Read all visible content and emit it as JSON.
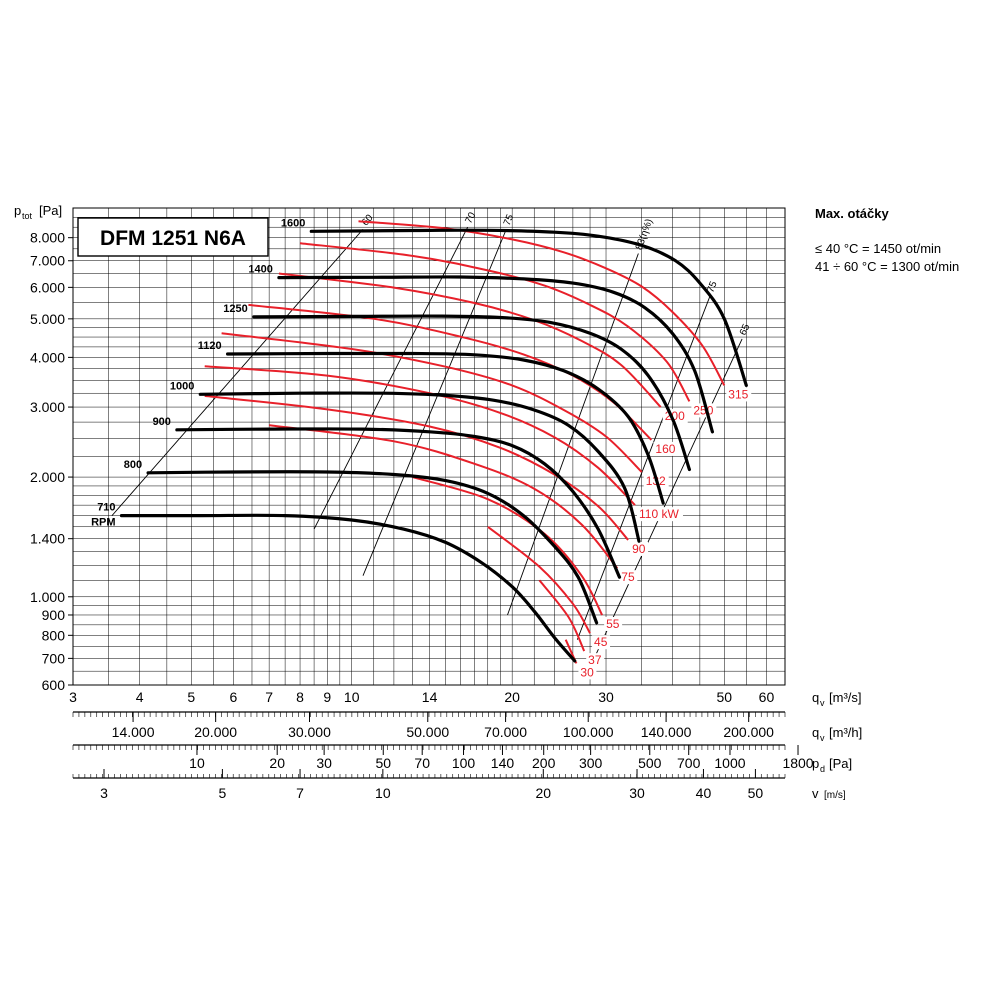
{
  "chart_data": {
    "type": "line",
    "title": "DFM 1251 N6A",
    "ylabel": "p",
    "ylabel_sub": "tot",
    "ylabel_unit": "[Pa]",
    "ylim": [
      600,
      9500
    ],
    "yscale": "log",
    "xlim": [
      3,
      65
    ],
    "xscale": "log",
    "yticks": [
      {
        "v": 600,
        "t": "600"
      },
      {
        "v": 700,
        "t": "700"
      },
      {
        "v": 800,
        "t": "800"
      },
      {
        "v": 900,
        "t": "900"
      },
      {
        "v": 1000,
        "t": "1.000"
      },
      {
        "v": 1400,
        "t": "1.400"
      },
      {
        "v": 2000,
        "t": "2.000"
      },
      {
        "v": 3000,
        "t": "3.000"
      },
      {
        "v": 4000,
        "t": "4.000"
      },
      {
        "v": 5000,
        "t": "5.000"
      },
      {
        "v": 6000,
        "t": "6.000"
      },
      {
        "v": 7000,
        "t": "7.000"
      },
      {
        "v": 8000,
        "t": "8.000"
      }
    ],
    "xticks": [
      {
        "v": 3,
        "t": "3"
      },
      {
        "v": 4,
        "t": "4"
      },
      {
        "v": 5,
        "t": "5"
      },
      {
        "v": 6,
        "t": "6"
      },
      {
        "v": 7,
        "t": "7"
      },
      {
        "v": 8,
        "t": "8"
      },
      {
        "v": 9,
        "t": "9"
      },
      {
        "v": 10,
        "t": "10"
      },
      {
        "v": 14,
        "t": "14"
      },
      {
        "v": 20,
        "t": "20"
      },
      {
        "v": 30,
        "t": "30"
      },
      {
        "v": 50,
        "t": "50"
      },
      {
        "v": 60,
        "t": "60"
      }
    ],
    "x_axes": [
      {
        "label": "q",
        "sub": "v",
        "unit": "[m³/s]",
        "ticks": []
      },
      {
        "label": "q",
        "sub": "v",
        "unit": "[m³/h]",
        "ticks": [
          {
            "v": 3.889,
            "t": "14.000"
          },
          {
            "v": 5.556,
            "t": "20.000"
          },
          {
            "v": 8.333,
            "t": "30.000"
          },
          {
            "v": 13.89,
            "t": "50.000"
          },
          {
            "v": 19.44,
            "t": "70.000"
          },
          {
            "v": 27.78,
            "t": "100.000"
          },
          {
            "v": 38.89,
            "t": "140.000"
          },
          {
            "v": 55.56,
            "t": "200.000"
          }
        ]
      },
      {
        "label": "p",
        "sub": "d",
        "unit": "[Pa]",
        "ticks": [
          {
            "v": 5.125,
            "t": "10"
          },
          {
            "v": 7.248,
            "t": "20"
          },
          {
            "v": 8.877,
            "t": "30"
          },
          {
            "v": 11.46,
            "t": "50"
          },
          {
            "v": 13.56,
            "t": "70"
          },
          {
            "v": 16.21,
            "t": "100"
          },
          {
            "v": 19.18,
            "t": "140"
          },
          {
            "v": 22.92,
            "t": "200"
          },
          {
            "v": 28.07,
            "t": "300"
          },
          {
            "v": 36.24,
            "t": "500"
          },
          {
            "v": 42.88,
            "t": "700"
          },
          {
            "v": 51.25,
            "t": "1000"
          },
          {
            "v": 68.76,
            "t": "1800"
          }
        ]
      },
      {
        "label": "v",
        "sub": "",
        "unit": "[m/s]",
        "ticks": [
          {
            "v": 3.43,
            "t": "3"
          },
          {
            "v": 5.72,
            "t": "5"
          },
          {
            "v": 8.0,
            "t": "7"
          },
          {
            "v": 11.44,
            "t": "10"
          },
          {
            "v": 22.88,
            "t": "20"
          },
          {
            "v": 34.3,
            "t": "30"
          },
          {
            "v": 45.7,
            "t": "40"
          },
          {
            "v": 57.2,
            "t": "50"
          }
        ]
      }
    ],
    "series": [
      {
        "name": "710",
        "sublabel": "RPM",
        "points": [
          [
            3.7,
            1600
          ],
          [
            5.2,
            1600
          ],
          [
            7.5,
            1600
          ],
          [
            10,
            1560
          ],
          [
            12.5,
            1480
          ],
          [
            15,
            1370
          ],
          [
            17.5,
            1220
          ],
          [
            20,
            1060
          ],
          [
            22,
            920
          ],
          [
            24,
            790
          ],
          [
            26.2,
            690
          ]
        ]
      },
      {
        "name": "800",
        "points": [
          [
            4.15,
            2050
          ],
          [
            6,
            2060
          ],
          [
            9,
            2060
          ],
          [
            12,
            2030
          ],
          [
            15,
            1960
          ],
          [
            18,
            1820
          ],
          [
            21,
            1600
          ],
          [
            24,
            1340
          ],
          [
            26.6,
            1120
          ],
          [
            28.8,
            860
          ]
        ]
      },
      {
        "name": "900",
        "points": [
          [
            4.7,
            2630
          ],
          [
            7,
            2640
          ],
          [
            10.5,
            2640
          ],
          [
            14,
            2600
          ],
          [
            17,
            2530
          ],
          [
            20,
            2400
          ],
          [
            23,
            2160
          ],
          [
            26,
            1840
          ],
          [
            29,
            1480
          ],
          [
            31.8,
            1120
          ]
        ]
      },
      {
        "name": "1000",
        "points": [
          [
            5.2,
            3230
          ],
          [
            8,
            3250
          ],
          [
            11.5,
            3250
          ],
          [
            15,
            3210
          ],
          [
            18.5,
            3120
          ],
          [
            22,
            2950
          ],
          [
            25.5,
            2700
          ],
          [
            29,
            2320
          ],
          [
            32.5,
            1880
          ],
          [
            34.6,
            1380
          ]
        ]
      },
      {
        "name": "1120",
        "points": [
          [
            5.85,
            4080
          ],
          [
            9,
            4090
          ],
          [
            13,
            4090
          ],
          [
            17,
            4060
          ],
          [
            21,
            3940
          ],
          [
            25,
            3700
          ],
          [
            29,
            3330
          ],
          [
            33,
            2840
          ],
          [
            36,
            2270
          ],
          [
            38.4,
            1720
          ]
        ]
      },
      {
        "name": "1250",
        "points": [
          [
            6.55,
            5060
          ],
          [
            10,
            5070
          ],
          [
            14.5,
            5080
          ],
          [
            19,
            5040
          ],
          [
            23.5,
            4900
          ],
          [
            28,
            4600
          ],
          [
            32,
            4200
          ],
          [
            36,
            3600
          ],
          [
            40,
            2800
          ],
          [
            43,
            2090
          ]
        ]
      },
      {
        "name": "1400",
        "points": [
          [
            7.3,
            6350
          ],
          [
            11,
            6360
          ],
          [
            16,
            6370
          ],
          [
            21,
            6300
          ],
          [
            26,
            6150
          ],
          [
            31,
            5830
          ],
          [
            35.5,
            5330
          ],
          [
            40,
            4590
          ],
          [
            44,
            3700
          ],
          [
            47.5,
            2600
          ]
        ]
      },
      {
        "name": "1600",
        "points": [
          [
            8.4,
            8300
          ],
          [
            13,
            8340
          ],
          [
            18,
            8350
          ],
          [
            24,
            8260
          ],
          [
            29,
            8070
          ],
          [
            35,
            7650
          ],
          [
            40.5,
            7000
          ],
          [
            45,
            6150
          ],
          [
            50,
            5000
          ],
          [
            55,
            3400
          ]
        ]
      }
    ],
    "power_lines": [
      {
        "label": "30",
        "points": [
          [
            25.2,
            780
          ],
          [
            26.4,
            680
          ]
        ]
      },
      {
        "label": "37",
        "points": [
          [
            22.5,
            1100
          ],
          [
            25.5,
            890
          ],
          [
            27.3,
            730
          ]
        ]
      },
      {
        "label": "45",
        "points": [
          [
            18,
            1500
          ],
          [
            22.5,
            1190
          ],
          [
            26,
            960
          ],
          [
            28,
            810
          ]
        ]
      },
      {
        "label": "55",
        "points": [
          [
            13,
            2000
          ],
          [
            18,
            1760
          ],
          [
            23,
            1440
          ],
          [
            27,
            1130
          ],
          [
            29.5,
            900
          ]
        ]
      },
      {
        "label": "75",
        "points": [
          [
            7,
            2700
          ],
          [
            12,
            2460
          ],
          [
            17,
            2160
          ],
          [
            22,
            1870
          ],
          [
            27,
            1520
          ],
          [
            31.5,
            1180
          ]
        ]
      },
      {
        "label": "90",
        "points": [
          [
            5.3,
            3200
          ],
          [
            9,
            2960
          ],
          [
            14,
            2680
          ],
          [
            19,
            2370
          ],
          [
            24,
            2030
          ],
          [
            29,
            1690
          ],
          [
            33,
            1390
          ]
        ]
      },
      {
        "label": "110 kW",
        "points": [
          [
            5.3,
            3800
          ],
          [
            9,
            3600
          ],
          [
            14,
            3250
          ],
          [
            19,
            2900
          ],
          [
            24,
            2520
          ],
          [
            29,
            2110
          ],
          [
            34,
            1700
          ]
        ]
      },
      {
        "label": "132",
        "points": [
          [
            5.7,
            4600
          ],
          [
            10,
            4200
          ],
          [
            15,
            3790
          ],
          [
            20,
            3400
          ],
          [
            25,
            2950
          ],
          [
            30,
            2530
          ],
          [
            35,
            2060
          ]
        ]
      },
      {
        "label": "160",
        "points": [
          [
            6.4,
            5420
          ],
          [
            11,
            5000
          ],
          [
            16,
            4510
          ],
          [
            21,
            4070
          ],
          [
            26,
            3600
          ],
          [
            31,
            3080
          ],
          [
            36.5,
            2480
          ]
        ]
      },
      {
        "label": "200",
        "points": [
          [
            7.3,
            6500
          ],
          [
            12,
            5990
          ],
          [
            17,
            5480
          ],
          [
            22,
            4960
          ],
          [
            27,
            4400
          ],
          [
            32,
            3830
          ],
          [
            38,
            3000
          ]
        ]
      },
      {
        "label": "250",
        "points": [
          [
            8,
            7750
          ],
          [
            13,
            7200
          ],
          [
            18,
            6620
          ],
          [
            23,
            6060
          ],
          [
            28,
            5420
          ],
          [
            33,
            4780
          ],
          [
            39,
            3900
          ],
          [
            43,
            3100
          ]
        ]
      },
      {
        "label": "315",
        "points": [
          [
            10.3,
            8800
          ],
          [
            15,
            8440
          ],
          [
            20,
            7920
          ],
          [
            25,
            7350
          ],
          [
            30,
            6700
          ],
          [
            35,
            6030
          ],
          [
            40,
            5200
          ],
          [
            45.5,
            4280
          ],
          [
            50,
            3400
          ]
        ]
      }
    ],
    "efficiency_lines": [
      {
        "label": "60",
        "points": [
          [
            3.55,
            1600
          ],
          [
            10.5,
            8400
          ]
        ]
      },
      {
        "label": "70",
        "points": [
          [
            8.5,
            1480
          ],
          [
            16.5,
            8500
          ]
        ]
      },
      {
        "label": "75",
        "points": [
          [
            10.5,
            1130
          ],
          [
            19.5,
            8400
          ]
        ]
      },
      {
        "label": "83(η%)",
        "points": [
          [
            19.6,
            900
          ],
          [
            34.5,
            7300
          ]
        ]
      },
      {
        "label": "75",
        "points": [
          [
            26.5,
            780
          ],
          [
            47,
            5700
          ]
        ]
      },
      {
        "label": "65",
        "points": [
          [
            28.5,
            700
          ],
          [
            54,
            4450
          ]
        ]
      }
    ],
    "annotations": [
      "Max. otáčky",
      "≤ 40 °C = 1450 ot/min",
      "41 ÷ 60 °C = 1300 ot/min"
    ]
  },
  "colors": {
    "fan_curve": "#000000",
    "power_line": "#e8202a",
    "grid": "#000000",
    "efficiency_line": "#000000"
  },
  "side_note": {
    "title": "Max. otáčky",
    "line1": "≤ 40 °C = 1450 ot/min",
    "line2": "41 ÷ 60 °C = 1300 ot/min"
  }
}
